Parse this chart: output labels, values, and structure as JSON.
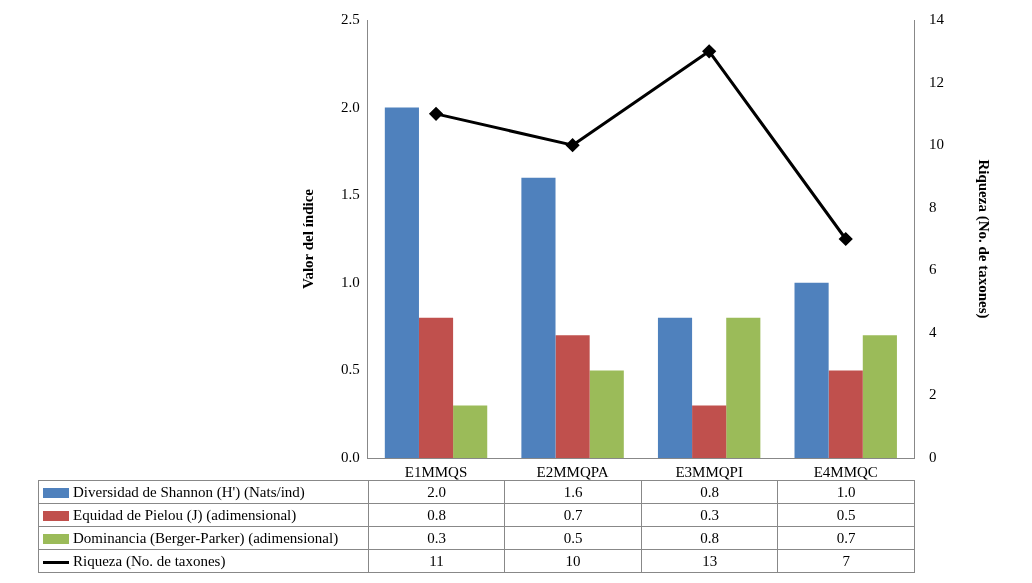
{
  "chart_data": {
    "type": "bar",
    "categories": [
      "E1MMQS",
      "E2MMQPA",
      "E3MMQPI",
      "E4MMQC"
    ],
    "ylabel": "Valor del índice",
    "y2label": "Riqueza (No. de taxones)",
    "ylim": [
      0,
      2.5
    ],
    "yticks": [
      {
        "value": 0,
        "label": "0.0"
      },
      {
        "value": 0.5,
        "label": "0.5"
      },
      {
        "value": 1,
        "label": "1.0"
      },
      {
        "value": 1.5,
        "label": "1.5"
      },
      {
        "value": 2,
        "label": "2.0"
      },
      {
        "value": 2.5,
        "label": "2.5"
      }
    ],
    "y2lim": [
      0,
      14
    ],
    "y2ticks": [
      0,
      2,
      4,
      6,
      8,
      10,
      12,
      14
    ],
    "series": [
      {
        "name": "Diversidad de Shannon (H') (Nats/ind)",
        "color": "#4f81bd",
        "values": [
          2.0,
          1.6,
          0.8,
          1.0
        ],
        "value_labels": [
          "2.0",
          "1.6",
          "0.8",
          "1.0"
        ]
      },
      {
        "name": "Equidad de Pielou (J) (adimensional)",
        "color": "#c0504d",
        "values": [
          0.8,
          0.7,
          0.3,
          0.5
        ],
        "value_labels": [
          "0.8",
          "0.7",
          "0.3",
          "0.5"
        ]
      },
      {
        "name": "Dominancia (Berger-Parker) (adimensional)",
        "color": "#9bbb59",
        "values": [
          0.3,
          0.5,
          0.8,
          0.7
        ],
        "value_labels": [
          "0.3",
          "0.5",
          "0.8",
          "0.7"
        ]
      },
      {
        "name": "Riqueza (No. de taxones)",
        "type": "line",
        "axis": "y2",
        "color": "#000000",
        "values": [
          11,
          10,
          13,
          7
        ],
        "value_labels": [
          "11",
          "10",
          "13",
          "7"
        ],
        "marker": "diamond"
      }
    ],
    "legend": "bottom",
    "grid": false
  }
}
